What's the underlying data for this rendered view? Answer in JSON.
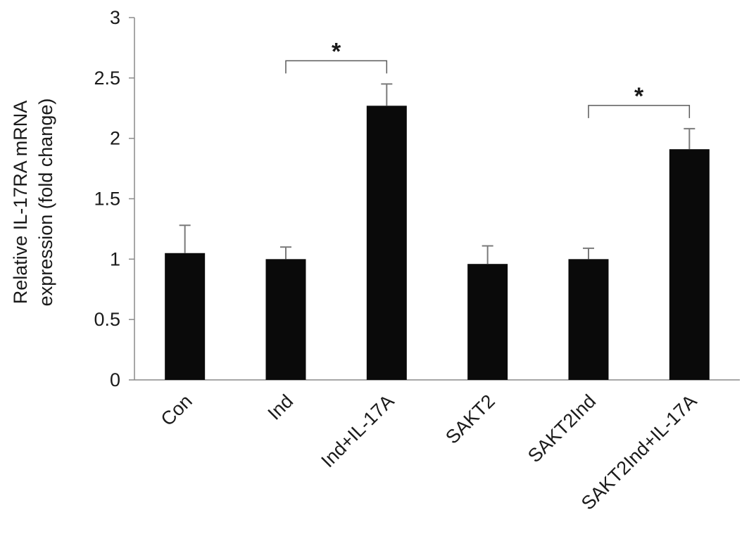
{
  "chart_data": {
    "type": "bar",
    "title": "",
    "xlabel": "",
    "ylabel_lines": [
      "Relative IL-17RA mRNA",
      "expression (fold change)"
    ],
    "categories": [
      "Con",
      "Ind",
      "Ind+IL-17A",
      "SAKT2",
      "SAKT2Ind",
      "SAKT2Ind+IL-17A"
    ],
    "values": [
      1.05,
      1.0,
      2.27,
      0.96,
      1.0,
      1.91
    ],
    "errors": [
      0.23,
      0.1,
      0.18,
      0.15,
      0.09,
      0.17
    ],
    "ylim": [
      0,
      3
    ],
    "yticks": [
      0,
      0.5,
      1,
      1.5,
      2,
      2.5,
      3
    ],
    "ytick_labels": [
      "0",
      "0.5",
      "1",
      "1.5",
      "2",
      "2.5",
      "3"
    ],
    "grid": false,
    "bar_color": "#0a0a0a",
    "significance": [
      {
        "from": 1,
        "to": 2,
        "label": "*"
      },
      {
        "from": 4,
        "to": 5,
        "label": "*"
      }
    ]
  }
}
